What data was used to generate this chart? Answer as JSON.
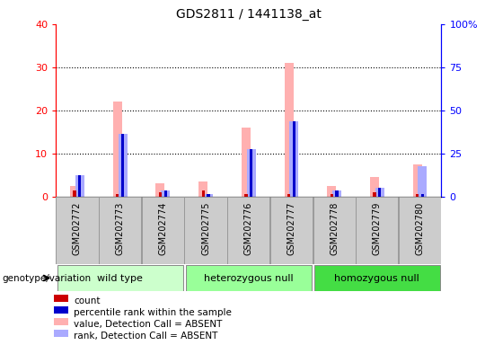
{
  "title": "GDS2811 / 1441138_at",
  "samples": [
    "GSM202772",
    "GSM202773",
    "GSM202774",
    "GSM202775",
    "GSM202776",
    "GSM202777",
    "GSM202778",
    "GSM202779",
    "GSM202780"
  ],
  "count_values": [
    1.5,
    0.5,
    1.0,
    1.5,
    0.5,
    0.5,
    0.5,
    1.0,
    0.5
  ],
  "percentile_rank_values": [
    5.0,
    14.5,
    1.5,
    0.5,
    11.0,
    17.5,
    1.5,
    2.0,
    0.5
  ],
  "absent_value_values": [
    2.5,
    22.0,
    3.0,
    3.5,
    16.0,
    31.0,
    2.5,
    4.5,
    7.5
  ],
  "absent_rank_values": [
    5.0,
    14.5,
    1.5,
    0.5,
    11.0,
    17.5,
    1.5,
    2.0,
    7.0
  ],
  "groups": [
    {
      "label": "wild type",
      "start": 0,
      "end": 3,
      "color": "#CCFFCC"
    },
    {
      "label": "heterozygous null",
      "start": 3,
      "end": 6,
      "color": "#99FF99"
    },
    {
      "label": "homozygous null",
      "start": 6,
      "end": 9,
      "color": "#44DD44"
    }
  ],
  "ylim_left": [
    0,
    40
  ],
  "ylim_right": [
    0,
    100
  ],
  "yticks_left": [
    0,
    10,
    20,
    30,
    40
  ],
  "yticks_right": [
    0,
    25,
    50,
    75,
    100
  ],
  "ytick_labels_right": [
    "0",
    "25",
    "50",
    "75",
    "100%"
  ],
  "color_count": "#CC0000",
  "color_rank": "#0000CC",
  "color_absent_value": "#FFB0B0",
  "color_absent_rank": "#AAAAFF",
  "legend_items": [
    {
      "label": "count",
      "color": "#CC0000"
    },
    {
      "label": "percentile rank within the sample",
      "color": "#0000CC"
    },
    {
      "label": "value, Detection Call = ABSENT",
      "color": "#FFB0B0"
    },
    {
      "label": "rank, Detection Call = ABSENT",
      "color": "#AAAAFF"
    }
  ],
  "genotype_label": "genotype/variation",
  "bg_sample_color": "#CCCCCC",
  "grid_dotted_at": [
    10,
    20,
    30
  ],
  "absent_bar_width": 0.3,
  "present_bar_width": 0.07
}
